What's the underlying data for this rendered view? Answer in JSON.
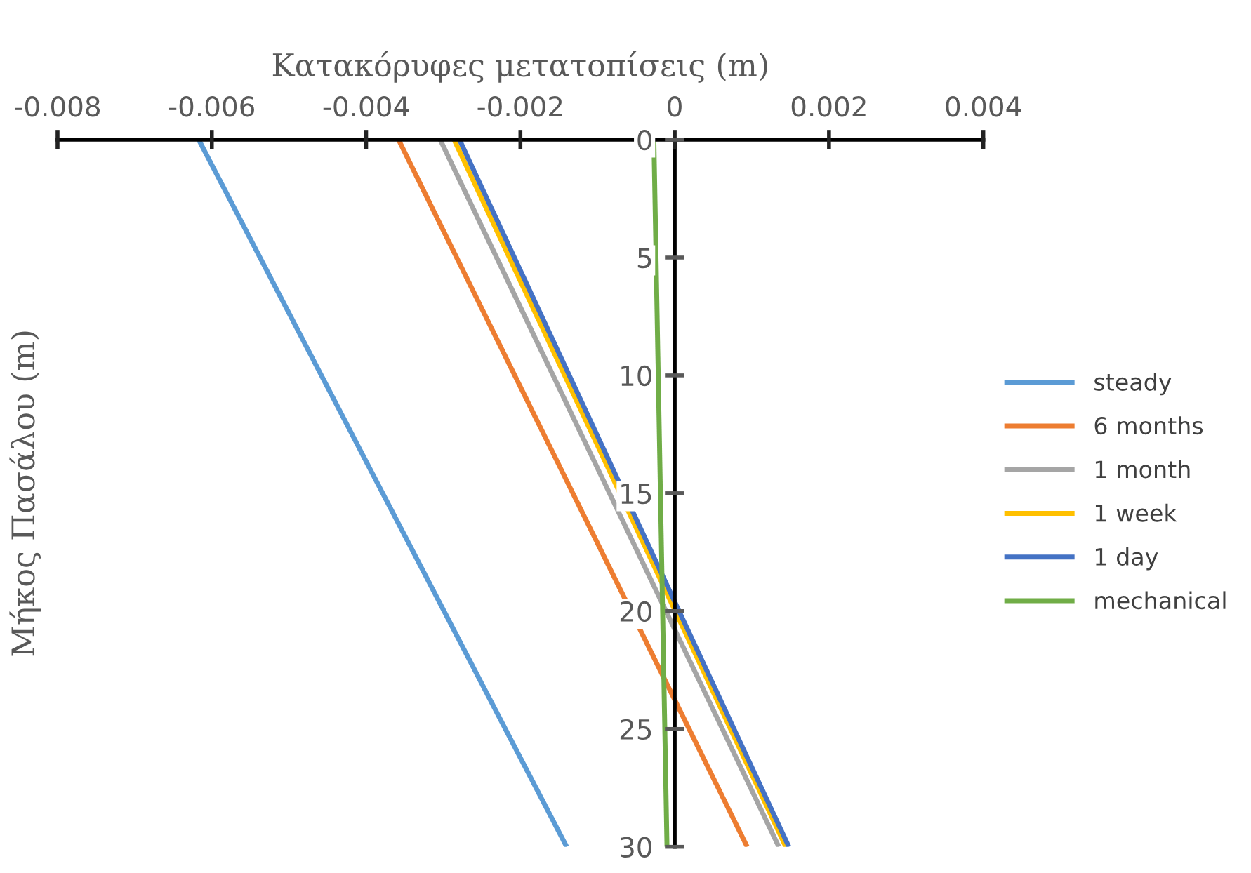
{
  "chart_data": {
    "type": "line",
    "xlabel": "Κατακόρυφες μετατοπίσεις (m)",
    "ylabel": "Μήκος Πασάλου (m)",
    "xlim": [
      -0.008,
      0.004
    ],
    "xticks": [
      -0.008,
      -0.006,
      -0.004,
      -0.002,
      0,
      0.002,
      0.004
    ],
    "ylim": [
      30,
      0
    ],
    "yticks": [
      0,
      5,
      10,
      15,
      20,
      25,
      30
    ],
    "grid": false,
    "legend": "right",
    "marker": "none",
    "line_style": "solid",
    "series": [
      {
        "name": "steady",
        "color": "#5b9bd5",
        "x": [
          -0.00617,
          -0.0014
        ],
        "values": [
          0,
          30
        ]
      },
      {
        "name": "6 months",
        "color": "#ed7d31",
        "x": [
          -0.00358,
          0.00094
        ],
        "values": [
          0,
          30
        ]
      },
      {
        "name": "1 month",
        "color": "#a5a5a5",
        "x": [
          -0.00304,
          0.00135
        ],
        "values": [
          0,
          30
        ]
      },
      {
        "name": "1 week",
        "color": "#ffc000",
        "x": [
          -0.00286,
          0.00144
        ],
        "values": [
          0,
          30
        ]
      },
      {
        "name": "1 day",
        "color": "#4472c4",
        "x": [
          -0.00279,
          0.00148
        ],
        "values": [
          0,
          30
        ]
      },
      {
        "name": "mechanical",
        "color": "#70ad47",
        "x": [
          -0.00027,
          -0.0001
        ],
        "values": [
          0,
          30
        ]
      }
    ]
  }
}
